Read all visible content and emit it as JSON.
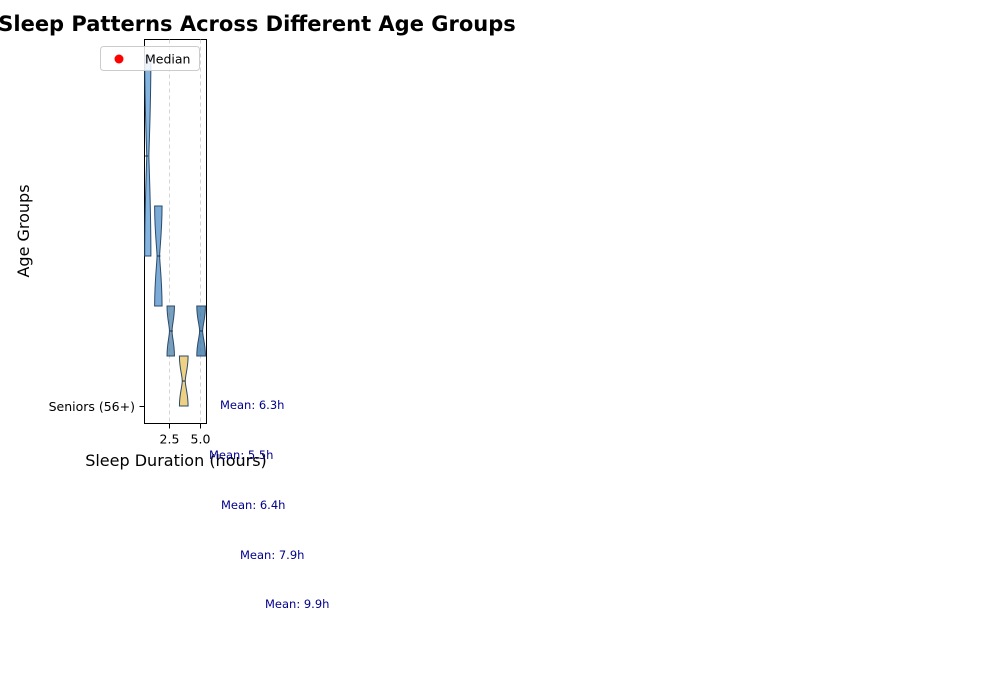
{
  "chart_data": {
    "type": "violin",
    "title": "Sleep Patterns Across Different Age Groups",
    "xlabel": "Sleep Duration (hours)",
    "ylabel": "Age Groups",
    "x_ticks": [
      2.5,
      5.0
    ],
    "x_tick_labels": [
      "2.5",
      "5.0"
    ],
    "y_tick_labels": [
      "Seniors (56+)"
    ],
    "grid": "x-dashed",
    "legend": {
      "entries": [
        "Median"
      ],
      "placement": "upper-left",
      "marker_color": "#ff0000"
    },
    "violins": [
      {
        "min": 0.5,
        "max": 1.0,
        "median": 0.65,
        "fill": "#5b9bd5"
      },
      {
        "min": 1.3,
        "max": 1.9,
        "median": 1.65,
        "fill": "#4f8fc8"
      },
      {
        "min": 2.3,
        "max": 2.9,
        "median": 2.65,
        "fill": "#4c7fa8"
      },
      {
        "min": 3.3,
        "max": 4.0,
        "median": 3.65,
        "fill": "#e8c25a"
      },
      {
        "min": 4.7,
        "max": 5.4,
        "median": 5.05,
        "fill": "#2f6fa0"
      }
    ],
    "mean_labels": [
      "Mean: 6.3h",
      "Mean: 5.5h",
      "Mean: 6.4h",
      "Mean: 7.9h",
      "Mean: 9.9h"
    ],
    "mean_label_color": "#00008b"
  }
}
